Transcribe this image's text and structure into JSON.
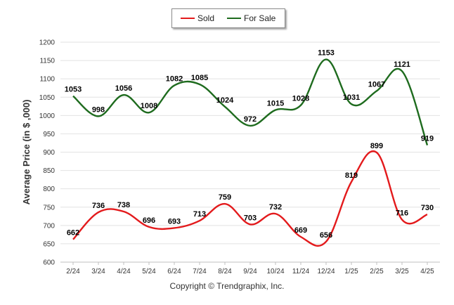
{
  "chart_data": {
    "type": "line",
    "categories": [
      "2/24",
      "3/24",
      "4/24",
      "5/24",
      "6/24",
      "7/24",
      "8/24",
      "9/24",
      "10/24",
      "11/24",
      "12/24",
      "1/25",
      "2/25",
      "3/25",
      "4/25"
    ],
    "series": [
      {
        "name": "Sold",
        "color": "#e31a1c",
        "values": [
          662,
          736,
          738,
          696,
          693,
          713,
          759,
          703,
          732,
          669,
          656,
          819,
          899,
          716,
          730
        ]
      },
      {
        "name": "For Sale",
        "color": "#1e6b1e",
        "values": [
          1053,
          998,
          1056,
          1008,
          1082,
          1085,
          1024,
          972,
          1015,
          1028,
          1153,
          1031,
          1067,
          1121,
          919
        ]
      }
    ],
    "ylabel": "Average Price (in $ ,000)",
    "ylim": [
      600,
      1200
    ],
    "yticks": [
      600,
      650,
      700,
      750,
      800,
      850,
      900,
      950,
      1000,
      1050,
      1100,
      1150,
      1200
    ],
    "grid": true,
    "legend_position": "top-center"
  },
  "footer": {
    "copyright": "Copyright © Trendgraphix, Inc."
  }
}
